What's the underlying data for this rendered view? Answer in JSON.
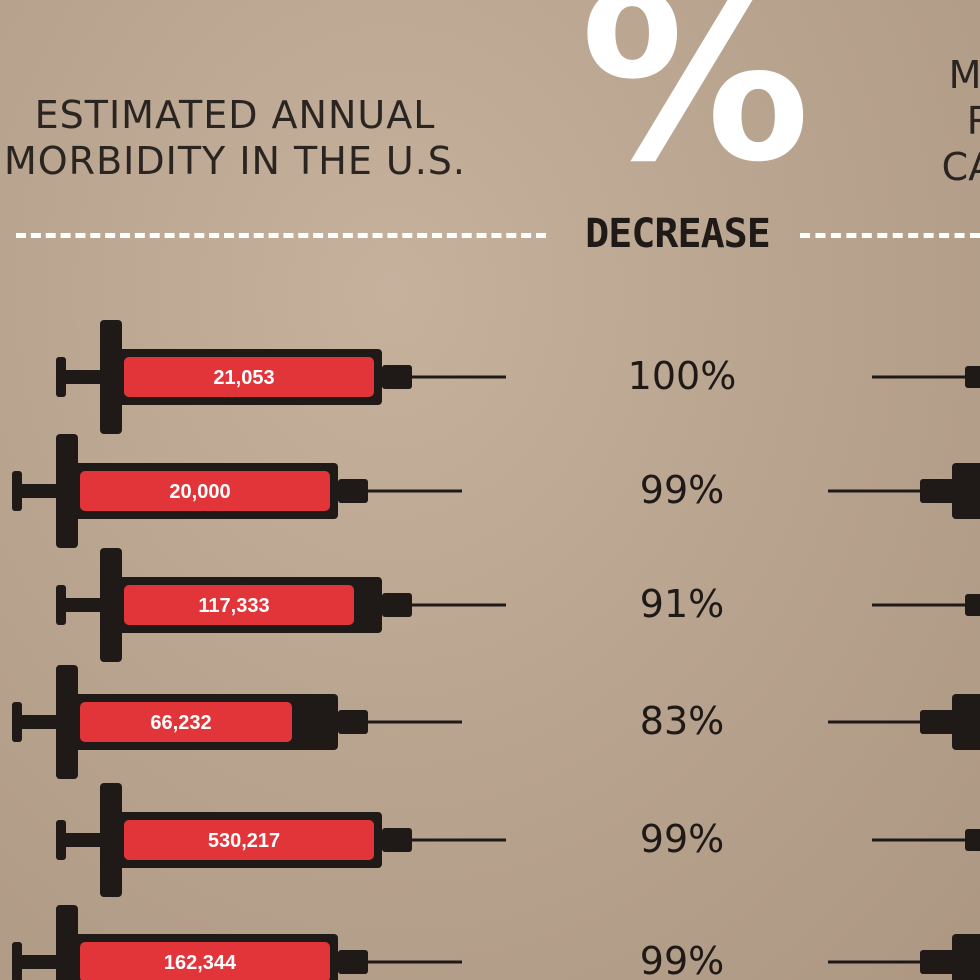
{
  "header": {
    "left_line1": "ESTIMATED ANNUAL",
    "left_line2": "MORBIDITY IN THE U.S.",
    "percent_sign": "%",
    "decrease": "DECREASE",
    "right_line1": "MO",
    "right_line2": "R",
    "right_line3": "CAS"
  },
  "colors": {
    "background": "#b9a48f",
    "syringe_body": "#1f1a17",
    "syringe_fill": "#e2353a",
    "accent": "#ffffff"
  },
  "chart_data": {
    "type": "table",
    "rows": [
      {
        "morbidity": "21,053",
        "decrease": "100%"
      },
      {
        "morbidity": "20,000",
        "decrease": "99%"
      },
      {
        "morbidity": "117,333",
        "decrease": "91%"
      },
      {
        "morbidity": "66,232",
        "decrease": "83%"
      },
      {
        "morbidity": "530,217",
        "decrease": "99%"
      },
      {
        "morbidity": "162,344",
        "decrease": "99%"
      }
    ]
  }
}
